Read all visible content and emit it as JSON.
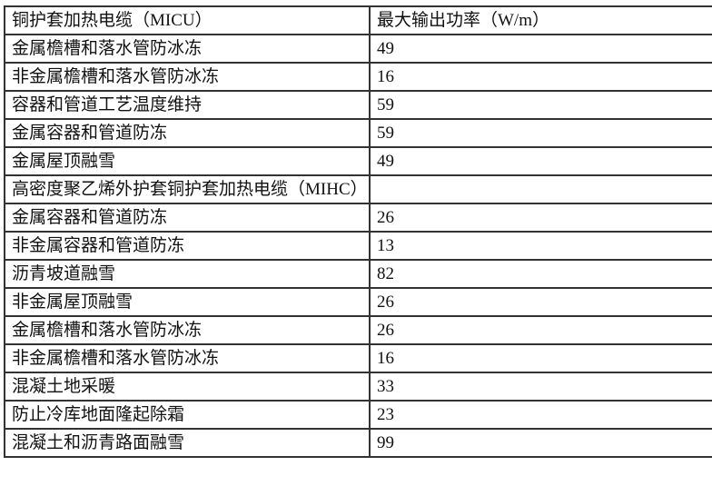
{
  "table": {
    "header": {
      "col1": "铜护套加热电缆（MICU）",
      "col2": "最大输出功率（W/m）"
    },
    "rows": [
      {
        "app": "金属檐槽和落水管防冰冻",
        "power": "49"
      },
      {
        "app": "非金属檐槽和落水管防冰冻",
        "power": "16"
      },
      {
        "app": "容器和管道工艺温度维持",
        "power": "59"
      },
      {
        "app": "金属容器和管道防冻",
        "power": "59"
      },
      {
        "app": "金属屋顶融雪",
        "power": "49"
      },
      {
        "app": "高密度聚乙烯外护套铜护套加热电缆（MIHC）",
        "power": ""
      },
      {
        "app": "金属容器和管道防冻",
        "power": "26"
      },
      {
        "app": "非金属容器和管道防冻",
        "power": "13"
      },
      {
        "app": "沥青坡道融雪",
        "power": "82"
      },
      {
        "app": "非金属屋顶融雪",
        "power": "26"
      },
      {
        "app": "金属檐槽和落水管防冰冻",
        "power": "26"
      },
      {
        "app": "非金属檐槽和落水管防冰冻",
        "power": "16"
      },
      {
        "app": "混凝土地采暖",
        "power": "33"
      },
      {
        "app": "防止冷库地面隆起除霜",
        "power": "23"
      },
      {
        "app": "混凝土和沥青路面融雪",
        "power": "99"
      }
    ],
    "border_color": "#333333"
  },
  "chart_data": {
    "type": "table",
    "title": "",
    "columns": [
      "铜护套加热电缆（MICU）",
      "最大输出功率（W/m）"
    ],
    "sections": [
      {
        "section_label": "铜护套加热电缆（MICU）",
        "categories": [
          "金属檐槽和落水管防冰冻",
          "非金属檐槽和落水管防冰冻",
          "容器和管道工艺温度维持",
          "金属容器和管道防冻",
          "金属屋顶融雪"
        ],
        "values": [
          49,
          16,
          59,
          59,
          49
        ]
      },
      {
        "section_label": "高密度聚乙烯外护套铜护套加热电缆（MIHC）",
        "categories": [
          "金属容器和管道防冻",
          "非金属容器和管道防冻",
          "沥青坡道融雪",
          "非金属屋顶融雪",
          "金属檐槽和落水管防冰冻",
          "非金属檐槽和落水管防冰冻",
          "混凝土地采暖",
          "防止冷库地面隆起除霜",
          "混凝土和沥青路面融雪"
        ],
        "values": [
          26,
          13,
          82,
          26,
          26,
          16,
          33,
          23,
          99
        ]
      }
    ]
  }
}
